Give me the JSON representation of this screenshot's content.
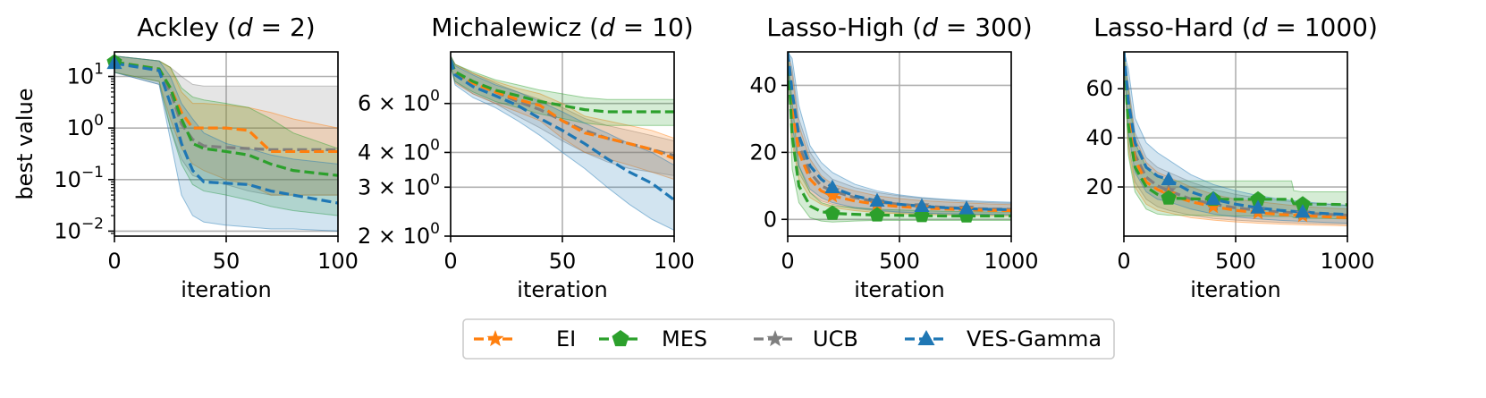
{
  "ylabel": "best value",
  "colors": {
    "EI": "#ff7f0e",
    "MES": "#2ca02c",
    "UCB": "#7f7f7f",
    "VES-Gamma": "#1f77b4"
  },
  "markers": {
    "EI": "star",
    "MES": "pentagon",
    "UCB": "star",
    "VES-Gamma": "triangle"
  },
  "legend": [
    "EI",
    "MES",
    "UCB",
    "VES-Gamma"
  ],
  "chart_data": [
    {
      "type": "line",
      "title": "Ackley (d = 2)",
      "title_parts": {
        "pre": "Ackley (",
        "var": "d",
        "eq": " = ",
        "num": "2",
        "post": ")"
      },
      "xlabel": "iteration",
      "ylabel": "best value",
      "xlim": [
        0,
        100
      ],
      "xticks": [
        0,
        50,
        100
      ],
      "yscale": "log",
      "ylim": [
        0.008,
        30
      ],
      "yticks": [
        {
          "v": 10,
          "base": "10",
          "exp": "1"
        },
        {
          "v": 1,
          "base": "10",
          "exp": "0"
        },
        {
          "v": 0.1,
          "base": "10",
          "exp": "−1"
        },
        {
          "v": 0.01,
          "base": "10",
          "exp": "−2"
        }
      ],
      "marker_at": [
        0
      ],
      "series": [
        {
          "name": "UCB",
          "x": [
            0,
            20,
            25,
            30,
            35,
            40,
            50,
            60,
            70,
            80,
            100
          ],
          "mean": [
            19,
            13,
            5,
            1.2,
            0.6,
            0.45,
            0.42,
            0.4,
            0.38,
            0.38,
            0.38
          ],
          "lo": [
            12,
            7,
            1,
            0.25,
            0.12,
            0.1,
            0.08,
            0.06,
            0.05,
            0.05,
            0.05
          ],
          "hi": [
            25,
            20,
            15,
            10,
            7,
            6.5,
            6.5,
            6.5,
            6.5,
            6.5,
            6.5
          ]
        },
        {
          "name": "EI",
          "x": [
            0,
            20,
            25,
            30,
            35,
            40,
            50,
            60,
            70,
            80,
            100
          ],
          "mean": [
            19,
            14,
            6,
            2,
            1,
            1,
            1,
            0.9,
            0.35,
            0.35,
            0.35
          ],
          "lo": [
            12,
            8,
            1.5,
            0.4,
            0.2,
            0.15,
            0.1,
            0.08,
            0.05,
            0.05,
            0.05
          ],
          "hi": [
            25,
            20,
            15,
            5,
            3,
            3,
            2.8,
            2.5,
            2,
            1.5,
            1
          ]
        },
        {
          "name": "MES",
          "x": [
            0,
            20,
            25,
            30,
            35,
            40,
            50,
            60,
            70,
            80,
            100
          ],
          "mean": [
            19,
            14,
            6,
            1.5,
            0.5,
            0.4,
            0.35,
            0.3,
            0.2,
            0.15,
            0.12
          ],
          "lo": [
            12,
            8,
            1,
            0.2,
            0.08,
            0.06,
            0.05,
            0.04,
            0.03,
            0.025,
            0.02
          ],
          "hi": [
            25,
            20,
            15,
            6,
            4,
            3.5,
            3,
            2.5,
            1.5,
            0.8,
            0.4
          ]
        },
        {
          "name": "VES-Gamma",
          "x": [
            0,
            20,
            25,
            30,
            35,
            40,
            50,
            60,
            70,
            80,
            100
          ],
          "mean": [
            18,
            13,
            3,
            0.5,
            0.15,
            0.09,
            0.085,
            0.08,
            0.06,
            0.05,
            0.035
          ],
          "lo": [
            12,
            7,
            0.6,
            0.05,
            0.02,
            0.015,
            0.013,
            0.012,
            0.011,
            0.011,
            0.01
          ],
          "hi": [
            25,
            20,
            10,
            3,
            1.5,
            0.8,
            0.5,
            0.4,
            0.3,
            0.25,
            0.2
          ]
        }
      ]
    },
    {
      "type": "line",
      "title": "Michalewicz (d = 10)",
      "title_parts": {
        "pre": "Michalewicz (",
        "var": "d",
        "eq": " = ",
        "num": "10",
        "post": ")"
      },
      "xlabel": "iteration",
      "ylabel": "",
      "xlim": [
        0,
        100
      ],
      "xticks": [
        0,
        50,
        100
      ],
      "yscale": "log",
      "ylim": [
        2.0,
        9.2
      ],
      "yticks": [
        {
          "v": 6,
          "base": "6 × 10",
          "exp": "0"
        },
        {
          "v": 4,
          "base": "4 × 10",
          "exp": "0"
        },
        {
          "v": 3,
          "base": "3 × 10",
          "exp": "0"
        },
        {
          "v": 2,
          "base": "2 × 10",
          "exp": "0"
        }
      ],
      "marker_at": [],
      "series": [
        {
          "name": "UCB",
          "x": [
            0,
            2,
            10,
            20,
            30,
            40,
            50,
            60,
            70,
            80,
            90,
            100
          ],
          "mean": [
            8.6,
            7.8,
            7.1,
            6.6,
            6.1,
            5.7,
            5.2,
            4.8,
            4.5,
            4.3,
            4.1,
            3.9
          ],
          "lo": [
            8.2,
            7.2,
            6.5,
            6.0,
            5.4,
            4.9,
            4.4,
            4.0,
            3.7,
            3.5,
            3.4,
            3.3
          ],
          "hi": [
            8.9,
            8.3,
            7.7,
            7.1,
            6.6,
            6.2,
            5.8,
            5.3,
            5.0,
            4.8,
            4.6,
            4.4
          ]
        },
        {
          "name": "EI",
          "x": [
            0,
            2,
            10,
            20,
            30,
            40,
            50,
            60,
            70,
            80,
            90,
            100
          ],
          "mean": [
            8.6,
            7.7,
            7.1,
            6.6,
            6.2,
            5.9,
            5.2,
            4.7,
            4.5,
            4.3,
            4.1,
            3.8
          ],
          "lo": [
            8.2,
            7.1,
            6.5,
            6.0,
            5.6,
            5.2,
            4.5,
            4.0,
            3.8,
            3.6,
            3.4,
            3.2
          ],
          "hi": [
            8.9,
            8.3,
            7.7,
            7.2,
            6.8,
            6.5,
            6.0,
            5.4,
            5.2,
            5.0,
            4.8,
            4.5
          ]
        },
        {
          "name": "MES",
          "x": [
            0,
            2,
            10,
            20,
            30,
            40,
            50,
            60,
            70,
            80,
            90,
            100
          ],
          "mean": [
            8.6,
            7.8,
            7.2,
            6.7,
            6.4,
            6.1,
            5.9,
            5.7,
            5.6,
            5.6,
            5.6,
            5.6
          ],
          "lo": [
            8.2,
            7.2,
            6.6,
            6.1,
            5.8,
            5.5,
            5.3,
            5.1,
            5.0,
            5.0,
            5.0,
            5.0
          ],
          "hi": [
            8.9,
            8.3,
            7.8,
            7.3,
            7.0,
            6.7,
            6.5,
            6.3,
            6.2,
            6.2,
            6.2,
            6.2
          ]
        },
        {
          "name": "VES-Gamma",
          "x": [
            0,
            2,
            10,
            20,
            30,
            40,
            50,
            60,
            70,
            80,
            90,
            100
          ],
          "mean": [
            8.6,
            7.6,
            6.9,
            6.4,
            5.9,
            5.3,
            4.8,
            4.3,
            3.8,
            3.4,
            3.1,
            2.7
          ],
          "lo": [
            8.2,
            7.0,
            6.3,
            5.8,
            5.2,
            4.6,
            4.0,
            3.5,
            3.0,
            2.6,
            2.3,
            2.1
          ],
          "hi": [
            8.9,
            8.2,
            7.6,
            7.0,
            6.6,
            6.1,
            5.6,
            5.1,
            4.7,
            4.3,
            4.0,
            3.6
          ]
        }
      ]
    },
    {
      "type": "line",
      "title": "Lasso-High (d = 300)",
      "title_parts": {
        "pre": "Lasso-High (",
        "var": "d",
        "eq": " = ",
        "num": "300",
        "post": ")"
      },
      "xlabel": "iteration",
      "ylabel": "",
      "xlim": [
        0,
        1000
      ],
      "xticks": [
        0,
        500,
        1000
      ],
      "yscale": "linear",
      "ylim": [
        -5,
        50
      ],
      "yticks": [
        0,
        20,
        40
      ],
      "marker_at": [
        200,
        400,
        600,
        800
      ],
      "series": [
        {
          "name": "UCB",
          "x": [
            0,
            20,
            50,
            100,
            150,
            200,
            300,
            400,
            500,
            600,
            700,
            800,
            900,
            1000
          ],
          "mean": [
            50,
            35,
            22,
            14,
            10,
            8.5,
            6.5,
            5.2,
            4.5,
            4.0,
            3.6,
            3.3,
            3.1,
            3.0
          ],
          "lo": [
            50,
            25,
            14,
            8,
            5.5,
            4.5,
            3.2,
            2.5,
            2.0,
            1.8,
            1.6,
            1.5,
            1.4,
            1.3
          ],
          "hi": [
            50,
            45,
            30,
            20,
            15,
            12,
            9.5,
            8,
            7,
            6.3,
            5.8,
            5.3,
            5.0,
            4.8
          ]
        },
        {
          "name": "EI",
          "x": [
            0,
            20,
            50,
            100,
            150,
            200,
            300,
            400,
            500,
            600,
            700,
            800,
            900,
            1000
          ],
          "mean": [
            50,
            33,
            20,
            12,
            8.5,
            7,
            5.5,
            4.5,
            3.8,
            3.4,
            3.1,
            2.9,
            2.7,
            2.6
          ],
          "lo": [
            50,
            23,
            12,
            6.5,
            4.5,
            3.5,
            2.6,
            2.0,
            1.7,
            1.5,
            1.3,
            1.2,
            1.1,
            1.0
          ],
          "hi": [
            50,
            43,
            28,
            18,
            13,
            10.5,
            8.5,
            7,
            6.2,
            5.6,
            5.2,
            4.9,
            4.6,
            4.4
          ]
        },
        {
          "name": "MES",
          "x": [
            0,
            20,
            50,
            100,
            150,
            200,
            300,
            400,
            500,
            600,
            700,
            800,
            900,
            1000
          ],
          "mean": [
            50,
            25,
            10,
            4,
            2.3,
            1.8,
            1.5,
            1.3,
            1.2,
            1.1,
            1.0,
            1.0,
            1.0,
            1.0
          ],
          "lo": [
            50,
            15,
            5,
            0.5,
            -0.5,
            -0.8,
            -0.5,
            -0.3,
            -0.3,
            -0.3,
            -0.3,
            -0.3,
            -0.3,
            -0.3
          ],
          "hi": [
            50,
            35,
            16,
            8,
            5,
            4,
            3.5,
            3,
            2.8,
            2.6,
            2.4,
            2.3,
            2.2,
            2.2
          ]
        },
        {
          "name": "VES-Gamma",
          "x": [
            0,
            20,
            50,
            100,
            150,
            200,
            300,
            400,
            500,
            600,
            700,
            800,
            900,
            1000
          ],
          "mean": [
            50,
            38,
            25,
            16,
            12,
            9.5,
            7,
            5.5,
            4.5,
            3.9,
            3.5,
            3.2,
            3.0,
            2.9
          ],
          "lo": [
            50,
            28,
            16,
            9,
            6.5,
            5,
            3.5,
            2.7,
            2.2,
            1.9,
            1.7,
            1.6,
            1.5,
            1.4
          ],
          "hi": [
            50,
            48,
            34,
            22,
            17,
            14,
            10.5,
            8.5,
            7.3,
            6.5,
            6.0,
            5.6,
            5.3,
            5.1
          ]
        }
      ]
    },
    {
      "type": "line",
      "title": "Lasso-Hard (d = 1000)",
      "title_parts": {
        "pre": "Lasso-Hard (",
        "var": "d",
        "eq": " = ",
        "num": "1000",
        "post": ")"
      },
      "xlabel": "iteration",
      "ylabel": "",
      "xlim": [
        0,
        1000
      ],
      "xticks": [
        0,
        500,
        1000
      ],
      "yscale": "linear",
      "ylim": [
        0,
        75
      ],
      "yticks": [
        20,
        40,
        60
      ],
      "marker_at": [
        200,
        400,
        600,
        800
      ],
      "series": [
        {
          "name": "UCB",
          "x": [
            0,
            20,
            50,
            100,
            150,
            200,
            300,
            400,
            500,
            600,
            700,
            800,
            900,
            1000
          ],
          "mean": [
            75,
            50,
            33,
            24,
            20.5,
            18.5,
            15,
            13,
            11.5,
            10.5,
            9.8,
            9.3,
            8.9,
            8.5
          ],
          "lo": [
            75,
            38,
            22,
            15,
            12,
            10.5,
            8.5,
            7.2,
            6.5,
            6.0,
            5.6,
            5.3,
            5.0,
            4.8
          ],
          "hi": [
            75,
            62,
            42,
            32,
            28,
            26,
            22,
            19,
            17,
            15.5,
            14.5,
            13.5,
            13,
            12.5
          ]
        },
        {
          "name": "EI",
          "x": [
            0,
            20,
            50,
            100,
            150,
            200,
            300,
            400,
            500,
            600,
            700,
            800,
            900,
            1000
          ],
          "mean": [
            75,
            48,
            31,
            22,
            19,
            17,
            14,
            12,
            10.5,
            9.5,
            8.8,
            8.3,
            7.9,
            7.5
          ],
          "lo": [
            75,
            35,
            20,
            13,
            10.5,
            9.5,
            7.5,
            6.5,
            5.8,
            5.3,
            4.9,
            4.6,
            4.4,
            4.2
          ],
          "hi": [
            75,
            60,
            40,
            30,
            26,
            24,
            20,
            17,
            15,
            14,
            13,
            12,
            11.5,
            11
          ]
        },
        {
          "name": "MES",
          "x": [
            0,
            20,
            50,
            100,
            150,
            200,
            300,
            400,
            500,
            600,
            700,
            750,
            760,
            800,
            900,
            1000
          ],
          "mean": [
            75,
            45,
            28,
            20,
            17,
            15.5,
            15.2,
            15,
            15,
            15,
            15,
            15,
            13.2,
            13,
            13,
            12.8
          ],
          "lo": [
            75,
            33,
            18,
            11,
            9,
            8.5,
            8.5,
            8.3,
            8.2,
            8.1,
            8.0,
            8.0,
            7.5,
            7.3,
            7.2,
            7.0
          ],
          "hi": [
            75,
            58,
            38,
            28,
            24,
            22.5,
            22.5,
            22.5,
            22.5,
            22.5,
            22.5,
            22.5,
            18.5,
            18,
            18,
            18
          ]
        },
        {
          "name": "VES-Gamma",
          "x": [
            0,
            20,
            50,
            100,
            150,
            200,
            300,
            400,
            500,
            600,
            700,
            800,
            900,
            1000
          ],
          "mean": [
            75,
            55,
            38,
            28,
            24.5,
            23,
            18,
            15,
            13,
            11.5,
            10.5,
            9.8,
            9.2,
            8.8
          ],
          "lo": [
            75,
            42,
            26,
            18,
            15,
            14,
            11,
            9,
            7.8,
            7,
            6.4,
            6.0,
            5.6,
            5.3
          ],
          "hi": [
            75,
            68,
            48,
            38,
            34,
            31,
            25,
            21,
            18.5,
            16.5,
            15,
            14,
            13.2,
            12.5
          ]
        }
      ]
    }
  ]
}
